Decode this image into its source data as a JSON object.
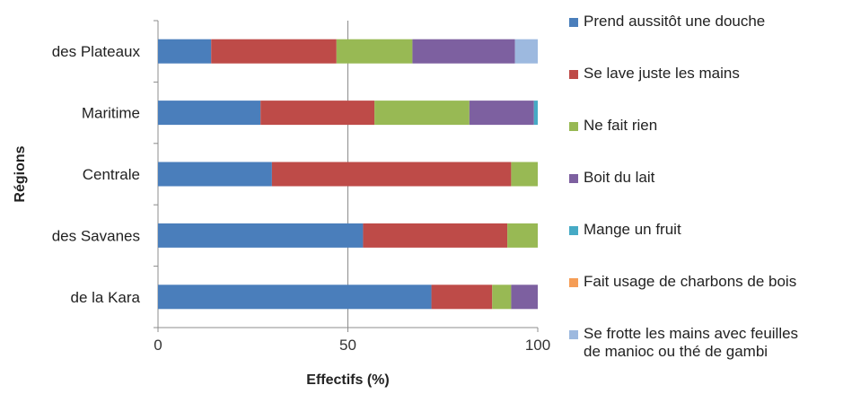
{
  "chart_data": {
    "type": "bar",
    "orientation": "horizontal",
    "stacked": true,
    "xlabel": "Effectifs (%)",
    "ylabel": "Régions",
    "xlim": [
      0,
      100
    ],
    "x_ticks": [
      "0",
      "50",
      "100"
    ],
    "grid": "vertical-major",
    "legend_position": "right",
    "categories": [
      "des Plateaux",
      "Maritime",
      "Centrale",
      "des Savanes",
      "de la Kara"
    ],
    "series": [
      {
        "name": "Prend aussitôt une douche",
        "color": "#4A7EBB",
        "values": [
          14,
          27,
          30,
          54,
          72
        ]
      },
      {
        "name": "Se lave juste les mains",
        "color": "#BE4B48",
        "values": [
          33,
          30,
          63,
          38,
          16
        ]
      },
      {
        "name": "Ne  fait rien",
        "color": "#98B954",
        "values": [
          20,
          25,
          7,
          8,
          5
        ]
      },
      {
        "name": "Boit du lait",
        "color": "#7D60A0",
        "values": [
          27,
          17,
          0,
          0,
          7
        ]
      },
      {
        "name": "Mange un fruit",
        "color": "#46AAC5",
        "values": [
          0,
          1,
          0,
          0,
          0
        ]
      },
      {
        "name": "Fait usage de charbons de bois",
        "color": "#F59D56",
        "values": [
          0,
          0,
          0,
          0,
          0
        ]
      },
      {
        "name": "Se frotte les mains avec feuilles\nde manioc ou thé de gambi",
        "color": "#9DB9DF",
        "values": [
          6,
          0,
          0,
          0,
          0
        ]
      }
    ]
  }
}
